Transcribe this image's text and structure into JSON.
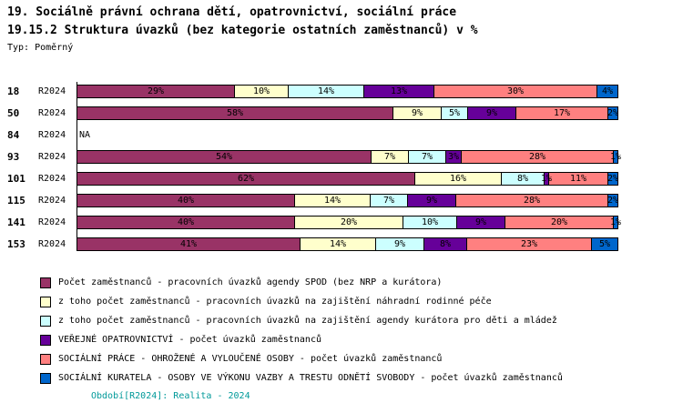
{
  "title_line1": "19. Sociálně právní ochrana dětí, opatrovnictví, sociální práce",
  "title_line2": "19.15.2 Struktura úvazků (bez kategorie ostatních zaměstnanců) v %",
  "subtitle": "Typ: Poměrný",
  "footer": "Období[R2024]: Realita - 2024",
  "colors": {
    "spod": "#993366",
    "nrp": "#FFFFCC",
    "kurator_deti": "#CCFFFF",
    "opatrovnictvi": "#660099",
    "socialni_prace": "#FF8080",
    "kuratela": "#0066CC",
    "footer_text": "#009999",
    "axis": "#000000"
  },
  "chart_data": {
    "type": "bar",
    "orientation": "horizontal",
    "stacked": true,
    "unit": "%",
    "xlim": [
      0,
      100
    ],
    "grid": false,
    "legend_position": "bottom",
    "period_label": "R2024",
    "na_label": "NA",
    "na_rows": [
      "84"
    ],
    "categories": [
      "18",
      "50",
      "84",
      "93",
      "101",
      "115",
      "141",
      "153"
    ],
    "series": [
      {
        "name": "Počet zaměstnanců - pracovních úvazků agendy SPOD (bez NRP a kurátora)",
        "color": "#993366",
        "values": [
          29,
          58,
          null,
          54,
          62,
          40,
          40,
          41
        ]
      },
      {
        "name": "z toho počet zaměstnanců - pracovních úvazků na zajištění náhradní rodinné péče",
        "color": "#FFFFCC",
        "values": [
          10,
          9,
          null,
          7,
          16,
          14,
          20,
          14
        ]
      },
      {
        "name": "z toho počet zaměstnanců - pracovních úvazků na zajištění agendy kurátora pro děti a mládež",
        "color": "#CCFFFF",
        "values": [
          14,
          5,
          null,
          7,
          8,
          7,
          10,
          9
        ]
      },
      {
        "name": "VEŘEJNÉ OPATROVNICTVÍ - počet úvazků zaměstnanců",
        "color": "#660099",
        "values": [
          13,
          9,
          null,
          3,
          1,
          9,
          9,
          8
        ]
      },
      {
        "name": "SOCIÁLNÍ PRÁCE - OHROŽENÉ A VYLOUČENÉ OSOBY - počet úvazků zaměstnanců",
        "color": "#FF8080",
        "values": [
          30,
          17,
          null,
          28,
          11,
          28,
          20,
          23
        ]
      },
      {
        "name": "SOCIÁLNÍ KURATELA - OSOBY VE VÝKONU VAZBY A TRESTU ODNĚTÍ SVOBODY - počet úvazků zaměstnanců",
        "color": "#0066CC",
        "values": [
          4,
          2,
          null,
          1,
          2,
          2,
          1,
          5
        ]
      }
    ]
  }
}
